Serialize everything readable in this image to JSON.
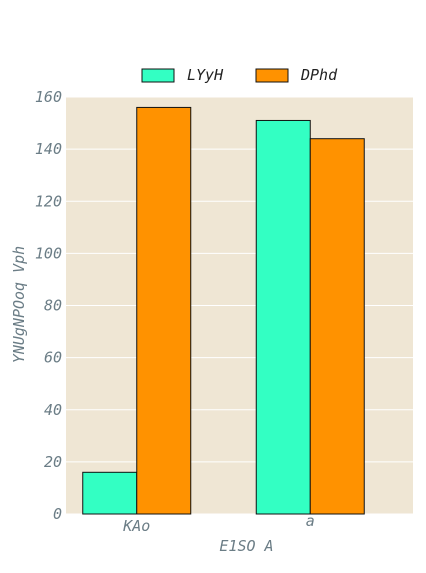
{
  "chart_data": {
    "type": "bar",
    "categories": [
      "KAo",
      "a"
    ],
    "series": [
      {
        "name": "LYyH",
        "values": [
          16,
          151
        ],
        "color": "#33ffc3"
      },
      {
        "name": "DPhd",
        "values": [
          156,
          144
        ],
        "color": "#ff9200"
      }
    ],
    "xlabel": "E1SO A",
    "ylabel": "YNUgNPOoq Vph",
    "ylim": [
      0,
      160
    ],
    "yticks": [
      0,
      20,
      40,
      60,
      80,
      100,
      120,
      140,
      160
    ],
    "grid": true,
    "legend_position": "top-center",
    "plot_background": "#efe6d4",
    "grid_color": "#ffffff",
    "bar_edge_color": "#111111"
  }
}
